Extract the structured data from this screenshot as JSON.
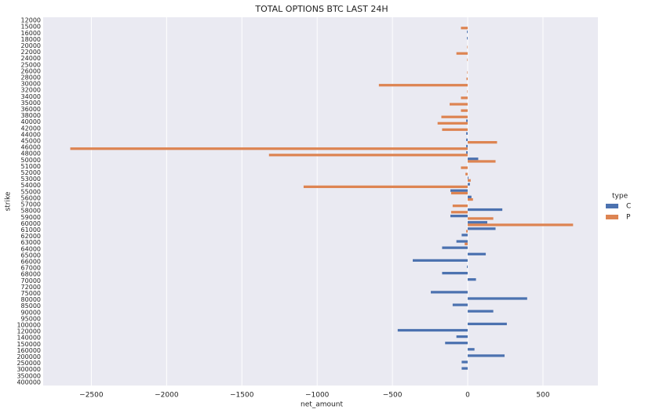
{
  "chart_data": {
    "type": "barh-grouped",
    "title": "TOTAL OPTIONS BTC LAST 24H",
    "x_label": "net_amount",
    "y_label": "strike",
    "categories": [
      "12000",
      "15000",
      "16000",
      "18000",
      "20000",
      "22000",
      "24000",
      "25000",
      "26000",
      "28000",
      "30000",
      "32000",
      "34000",
      "35000",
      "36000",
      "38000",
      "40000",
      "42000",
      "44000",
      "45000",
      "46000",
      "48000",
      "50000",
      "51000",
      "52000",
      "53000",
      "54000",
      "55000",
      "56000",
      "57000",
      "58000",
      "59000",
      "60000",
      "61000",
      "62000",
      "63000",
      "64000",
      "65000",
      "66000",
      "67000",
      "68000",
      "70000",
      "72000",
      "75000",
      "80000",
      "85000",
      "90000",
      "95000",
      "100000",
      "120000",
      "140000",
      "150000",
      "160000",
      "200000",
      "250000",
      "300000",
      "350000",
      "400000"
    ],
    "series": [
      {
        "name": "C",
        "color": "#4c72b0",
        "values": [
          null,
          null,
          -5,
          -5,
          null,
          null,
          null,
          null,
          null,
          null,
          null,
          null,
          null,
          null,
          null,
          null,
          -10,
          null,
          -10,
          -10,
          -10,
          -10,
          70,
          null,
          null,
          5,
          15,
          -115,
          25,
          null,
          230,
          -115,
          130,
          185,
          -40,
          -75,
          -170,
          120,
          -365,
          -5,
          -170,
          55,
          null,
          -245,
          395,
          -100,
          170,
          null,
          260,
          -465,
          -75,
          -150,
          45,
          245,
          -40,
          -40,
          null,
          null
        ]
      },
      {
        "name": "P",
        "color": "#dd8452",
        "values": [
          null,
          -45,
          null,
          null,
          -3,
          -75,
          -3,
          null,
          -3,
          -8,
          -590,
          -3,
          -45,
          -120,
          -45,
          -175,
          -200,
          -170,
          null,
          195,
          -2640,
          -1320,
          185,
          -45,
          -15,
          20,
          -1090,
          -110,
          35,
          -100,
          -110,
          170,
          700,
          -10,
          null,
          -20,
          null,
          null,
          null,
          null,
          null,
          null,
          null,
          null,
          null,
          null,
          null,
          null,
          null,
          null,
          null,
          null,
          null,
          null,
          null,
          null,
          null,
          null
        ]
      }
    ],
    "xlim": [
      -2820,
      865
    ],
    "xticks": [
      {
        "value": -2500,
        "label": "−2500"
      },
      {
        "value": -2000,
        "label": "−2000"
      },
      {
        "value": -1500,
        "label": "−1500"
      },
      {
        "value": -1000,
        "label": "−1000"
      },
      {
        "value": -500,
        "label": "−500"
      },
      0,
      500
    ],
    "grid": true,
    "legend_title": "type",
    "legend_position": "right"
  }
}
